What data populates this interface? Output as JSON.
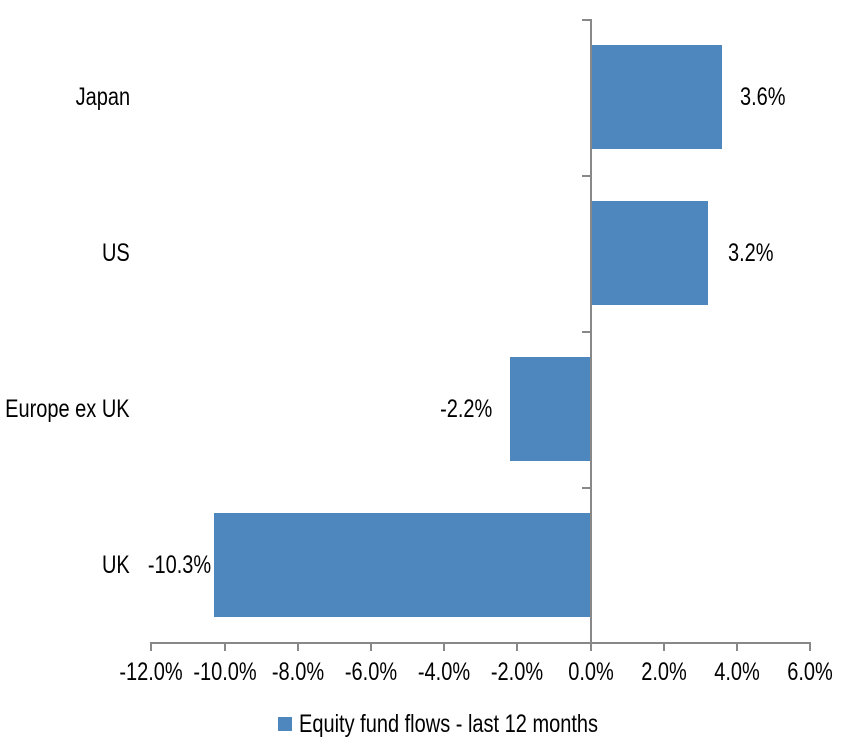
{
  "chart_data": {
    "type": "bar",
    "orientation": "horizontal",
    "title": "",
    "xlabel": "",
    "ylabel": "",
    "categories": [
      "Japan",
      "US",
      "Europe ex UK",
      "UK"
    ],
    "series": [
      {
        "name": "Equity fund flows - last 12 months",
        "values": [
          3.6,
          3.2,
          -2.2,
          -10.3
        ]
      }
    ],
    "value_labels": [
      "3.6%",
      "3.2%",
      "-2.2%",
      "-10.3%"
    ],
    "xlim": [
      -12,
      6
    ],
    "x_tick_interval": 2,
    "x_tick_labels": [
      "-12.0%",
      "-10.0%",
      "-8.0%",
      "-6.0%",
      "-4.0%",
      "-2.0%",
      "0.0%",
      "2.0%",
      "4.0%",
      "6.0%"
    ],
    "grid": false,
    "legend_position": "bottom"
  },
  "legend": {
    "label": "Equity fund flows - last 12 months"
  },
  "colors": {
    "bar": "#4E87BE",
    "axis": "#888888",
    "text": "#000000",
    "background": "#FFFFFF"
  }
}
